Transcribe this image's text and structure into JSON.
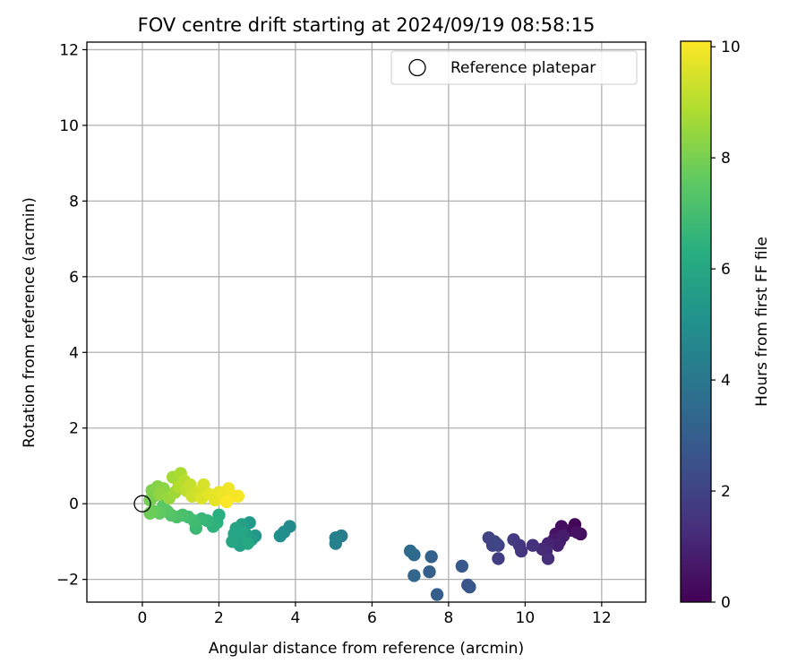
{
  "chart_data": {
    "type": "scatter",
    "title": "FOV centre drift starting at 2024/09/19 08:58:15",
    "xlabel": "Angular distance from reference (arcmin)",
    "ylabel": "Rotation from reference (arcmin)",
    "xlim": [
      -1.45,
      13.15
    ],
    "ylim": [
      -2.6,
      12.2
    ],
    "xticks": [
      0,
      2,
      4,
      6,
      8,
      10,
      12
    ],
    "yticks": [
      -2,
      0,
      2,
      4,
      6,
      8,
      10,
      12
    ],
    "grid": true,
    "legend": {
      "placement": "top-right",
      "entries": [
        "Reference platepar"
      ]
    },
    "reference_point": {
      "x": 0,
      "y": 0,
      "label": "Reference platepar"
    },
    "colorbar": {
      "label": "Hours from first FF file",
      "colormap": "viridis",
      "range": [
        0,
        10.1
      ],
      "ticks": [
        0,
        2,
        4,
        6,
        8,
        10
      ]
    },
    "points": [
      {
        "x": 11.3,
        "y": -0.55,
        "c": 0.1
      },
      {
        "x": 11.2,
        "y": -0.7,
        "c": 0.2
      },
      {
        "x": 11.45,
        "y": -0.8,
        "c": 0.3
      },
      {
        "x": 10.95,
        "y": -0.6,
        "c": 0.35
      },
      {
        "x": 11.35,
        "y": -0.75,
        "c": 0.45
      },
      {
        "x": 10.8,
        "y": -0.8,
        "c": 0.5
      },
      {
        "x": 10.9,
        "y": -1.0,
        "c": 0.6
      },
      {
        "x": 10.75,
        "y": -0.95,
        "c": 0.7
      },
      {
        "x": 11.0,
        "y": -0.85,
        "c": 0.8
      },
      {
        "x": 10.85,
        "y": -1.1,
        "c": 0.9
      },
      {
        "x": 10.6,
        "y": -1.05,
        "c": 1.0
      },
      {
        "x": 10.55,
        "y": -1.25,
        "c": 1.1
      },
      {
        "x": 10.45,
        "y": -1.2,
        "c": 1.2
      },
      {
        "x": 10.6,
        "y": -1.45,
        "c": 1.3
      },
      {
        "x": 10.2,
        "y": -1.1,
        "c": 1.45
      },
      {
        "x": 9.9,
        "y": -1.25,
        "c": 1.5
      },
      {
        "x": 9.85,
        "y": -1.1,
        "c": 1.6
      },
      {
        "x": 9.7,
        "y": -0.95,
        "c": 1.7
      },
      {
        "x": 9.3,
        "y": -1.45,
        "c": 1.8
      },
      {
        "x": 9.3,
        "y": -1.1,
        "c": 1.9
      },
      {
        "x": 9.2,
        "y": -1.0,
        "c": 1.95
      },
      {
        "x": 9.15,
        "y": -1.1,
        "c": 2.0
      },
      {
        "x": 9.05,
        "y": -0.9,
        "c": 2.05
      },
      {
        "x": 9.25,
        "y": -1.05,
        "c": 2.1
      },
      {
        "x": 8.5,
        "y": -2.15,
        "c": 2.6
      },
      {
        "x": 8.55,
        "y": -2.2,
        "c": 2.7
      },
      {
        "x": 8.35,
        "y": -1.65,
        "c": 2.8
      },
      {
        "x": 7.7,
        "y": -2.4,
        "c": 3.0
      },
      {
        "x": 7.5,
        "y": -1.8,
        "c": 3.1
      },
      {
        "x": 7.55,
        "y": -1.4,
        "c": 3.2
      },
      {
        "x": 7.1,
        "y": -1.9,
        "c": 3.3
      },
      {
        "x": 7.1,
        "y": -1.35,
        "c": 3.4
      },
      {
        "x": 7.0,
        "y": -1.25,
        "c": 3.5
      },
      {
        "x": 5.2,
        "y": -0.85,
        "c": 4.2
      },
      {
        "x": 5.05,
        "y": -1.05,
        "c": 4.3
      },
      {
        "x": 5.05,
        "y": -0.9,
        "c": 4.4
      },
      {
        "x": 3.85,
        "y": -0.6,
        "c": 4.8
      },
      {
        "x": 3.7,
        "y": -0.75,
        "c": 4.9
      },
      {
        "x": 3.6,
        "y": -0.85,
        "c": 5.0
      },
      {
        "x": 2.95,
        "y": -0.85,
        "c": 5.3
      },
      {
        "x": 2.8,
        "y": -0.5,
        "c": 5.4
      },
      {
        "x": 2.85,
        "y": -0.95,
        "c": 5.5
      },
      {
        "x": 2.7,
        "y": -0.8,
        "c": 5.6
      },
      {
        "x": 2.6,
        "y": -0.55,
        "c": 5.7
      },
      {
        "x": 2.55,
        "y": -1.1,
        "c": 5.75
      },
      {
        "x": 2.5,
        "y": -0.9,
        "c": 5.8
      },
      {
        "x": 2.45,
        "y": -0.65,
        "c": 5.85
      },
      {
        "x": 2.4,
        "y": -0.8,
        "c": 5.9
      },
      {
        "x": 2.35,
        "y": -1.0,
        "c": 5.95
      },
      {
        "x": 2.6,
        "y": -0.75,
        "c": 6.0
      },
      {
        "x": 2.75,
        "y": -1.05,
        "c": 6.05
      },
      {
        "x": 2.0,
        "y": -0.3,
        "c": 6.3
      },
      {
        "x": 1.95,
        "y": -0.5,
        "c": 6.4
      },
      {
        "x": 1.85,
        "y": -0.6,
        "c": 6.5
      },
      {
        "x": 1.7,
        "y": -0.45,
        "c": 6.6
      },
      {
        "x": 1.55,
        "y": -0.4,
        "c": 6.7
      },
      {
        "x": 1.4,
        "y": -0.65,
        "c": 6.8
      },
      {
        "x": 1.35,
        "y": -0.45,
        "c": 6.9
      },
      {
        "x": 1.2,
        "y": -0.35,
        "c": 7.0
      },
      {
        "x": 1.05,
        "y": -0.3,
        "c": 7.1
      },
      {
        "x": 0.9,
        "y": -0.35,
        "c": 7.2
      },
      {
        "x": 0.75,
        "y": -0.3,
        "c": 7.3
      },
      {
        "x": 0.65,
        "y": -0.2,
        "c": 7.4
      },
      {
        "x": 0.55,
        "y": -0.05,
        "c": 7.5
      },
      {
        "x": 0.45,
        "y": -0.25,
        "c": 7.6
      },
      {
        "x": 0.3,
        "y": -0.2,
        "c": 7.7
      },
      {
        "x": 0.2,
        "y": -0.25,
        "c": 7.8
      },
      {
        "x": 0.2,
        "y": 0.1,
        "c": 7.9
      },
      {
        "x": 0.3,
        "y": 0.2,
        "c": 8.0
      },
      {
        "x": 0.25,
        "y": 0.35,
        "c": 8.1
      },
      {
        "x": 0.4,
        "y": 0.45,
        "c": 8.2
      },
      {
        "x": 0.55,
        "y": 0.4,
        "c": 8.3
      },
      {
        "x": 0.45,
        "y": 0.25,
        "c": 8.4
      },
      {
        "x": 0.7,
        "y": 0.15,
        "c": 8.5
      },
      {
        "x": 0.85,
        "y": 0.3,
        "c": 8.6
      },
      {
        "x": 0.8,
        "y": 0.7,
        "c": 8.7
      },
      {
        "x": 1.0,
        "y": 0.8,
        "c": 8.8
      },
      {
        "x": 0.95,
        "y": 0.45,
        "c": 8.9
      },
      {
        "x": 1.1,
        "y": 0.6,
        "c": 9.0
      },
      {
        "x": 1.15,
        "y": 0.35,
        "c": 9.1
      },
      {
        "x": 1.25,
        "y": 0.5,
        "c": 9.2
      },
      {
        "x": 1.3,
        "y": 0.2,
        "c": 9.3
      },
      {
        "x": 1.45,
        "y": 0.3,
        "c": 9.4
      },
      {
        "x": 1.6,
        "y": 0.5,
        "c": 9.5
      },
      {
        "x": 1.55,
        "y": 0.15,
        "c": 9.6
      },
      {
        "x": 1.75,
        "y": 0.25,
        "c": 9.7
      },
      {
        "x": 1.9,
        "y": 0.1,
        "c": 9.75
      },
      {
        "x": 2.0,
        "y": 0.3,
        "c": 9.8
      },
      {
        "x": 2.1,
        "y": 0.15,
        "c": 9.85
      },
      {
        "x": 2.25,
        "y": 0.4,
        "c": 9.9
      },
      {
        "x": 2.35,
        "y": 0.2,
        "c": 9.95
      },
      {
        "x": 2.5,
        "y": 0.2,
        "c": 10.0
      },
      {
        "x": 2.2,
        "y": 0.05,
        "c": 10.05
      }
    ]
  }
}
